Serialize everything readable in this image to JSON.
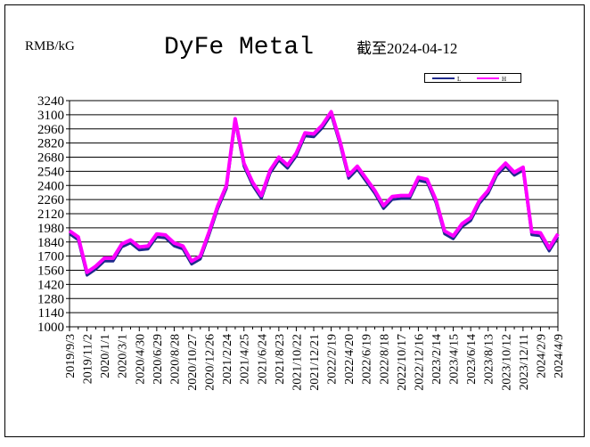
{
  "chart_data": {
    "type": "line",
    "title": "DyFe Metal",
    "y_label": "RMB/kG",
    "annotation": "截至2024-04-12",
    "categories": [
      "2019/9/3",
      null,
      "2019/11/2",
      null,
      "2020/1/1",
      null,
      "2020/3/1",
      null,
      "2020/4/30",
      null,
      "2020/6/29",
      null,
      "2020/8/28",
      null,
      "2020/10/27",
      null,
      "2020/12/26",
      null,
      "2021/2/24",
      null,
      "2021/4/25",
      null,
      "2021/6/24",
      null,
      "2021/8/23",
      null,
      "2021/10/22",
      null,
      "2021/12/21",
      null,
      "2022/2/19",
      null,
      "2022/4/20",
      null,
      "2022/6/19",
      null,
      "2022/8/18",
      null,
      "2022/10/17",
      null,
      "2022/12/16",
      null,
      "2023/2/14",
      null,
      "2023/4/15",
      null,
      "2023/6/14",
      null,
      "2023/8/13",
      null,
      "2023/10/12",
      null,
      "2023/12/11",
      null,
      "2024/2/9",
      null,
      "2024/4/9"
    ],
    "series": [
      {
        "name": "L",
        "color": "#1f2a8c",
        "values": [
          1920,
          1860,
          1510,
          1570,
          1650,
          1650,
          1790,
          1830,
          1760,
          1770,
          1890,
          1880,
          1800,
          1770,
          1620,
          1670,
          1910,
          2170,
          2370,
          3030,
          2590,
          2400,
          2270,
          2520,
          2650,
          2570,
          2690,
          2890,
          2880,
          2970,
          3100,
          2810,
          2470,
          2560,
          2440,
          2320,
          2170,
          2260,
          2270,
          2270,
          2450,
          2430,
          2230,
          1920,
          1870,
          1990,
          2050,
          2220,
          2320,
          2500,
          2590,
          2500,
          2550,
          1910,
          1900,
          1750,
          1890
        ]
      },
      {
        "name": "H",
        "color": "#ff00ff",
        "values": [
          1950,
          1890,
          1540,
          1600,
          1680,
          1680,
          1820,
          1860,
          1790,
          1800,
          1920,
          1910,
          1830,
          1800,
          1650,
          1700,
          1940,
          2200,
          2400,
          3060,
          2620,
          2430,
          2300,
          2550,
          2680,
          2600,
          2720,
          2920,
          2910,
          3000,
          3130,
          2840,
          2500,
          2590,
          2470,
          2350,
          2200,
          2290,
          2300,
          2300,
          2480,
          2460,
          2260,
          1950,
          1900,
          2020,
          2080,
          2250,
          2350,
          2530,
          2620,
          2530,
          2580,
          1940,
          1930,
          1780,
          1920
        ]
      }
    ],
    "ylim": [
      1000,
      3240
    ],
    "yticks": [
      1000,
      1140,
      1280,
      1420,
      1560,
      1700,
      1840,
      1980,
      2120,
      2260,
      2400,
      2540,
      2680,
      2820,
      2960,
      3100,
      3240
    ],
    "grid": true
  }
}
